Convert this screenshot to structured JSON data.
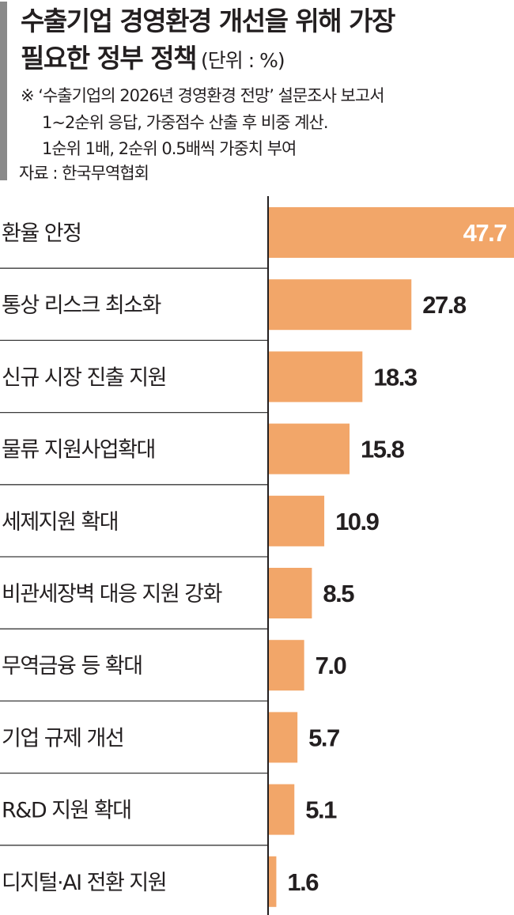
{
  "title": {
    "line1": "수출기업 경영환경 개선을 위해 가장",
    "line2": "필요한 정부 정책",
    "unit": "(단위 : %)"
  },
  "notes": [
    "※ ‘수출기업의 2026년 경영환경 전망’ 설문조사 보고서",
    "1~2순위 응답, 가중점수 산출 후 비중 계산.",
    "1순위 1배, 2순위 0.5배씩 가중치 부여"
  ],
  "source": "자료 : 한국무역협회",
  "colors": {
    "bar": "#f2a669",
    "divider": "#3a3a3a",
    "axis": "#231f20"
  },
  "chart_data": {
    "type": "bar",
    "orientation": "horizontal",
    "categories": [
      "환율 안정",
      "통상 리스크 최소화",
      "신규 시장 진출 지원",
      "물류 지원사업확대",
      "세제지원 확대",
      "비관세장벽 대응 지원 강화",
      "무역금융 등 확대",
      "기업 규제 개선",
      "R&D 지원 확대",
      "디지털·AI 전환 지원"
    ],
    "values": [
      47.7,
      27.8,
      18.3,
      15.8,
      10.9,
      8.5,
      7.0,
      5.7,
      5.1,
      1.6
    ],
    "value_labels": [
      "47.7",
      "27.8",
      "18.3",
      "15.8",
      "10.9",
      "8.5",
      "7.0",
      "5.7",
      "5.1",
      "1.6"
    ],
    "xlim": [
      0,
      47.7
    ],
    "grid": false,
    "legend": "none"
  }
}
